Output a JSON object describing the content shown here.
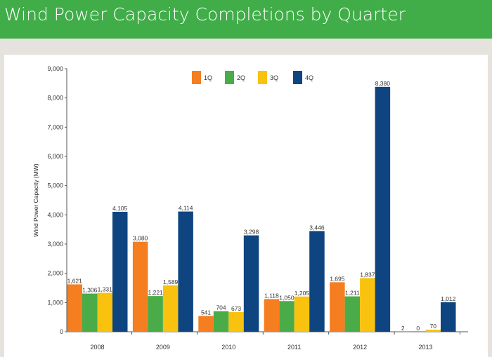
{
  "header": {
    "title": "Wind Power Capacity Completions by Quarter",
    "color": "#40ad49"
  },
  "chart_data": {
    "type": "bar",
    "title": "Wind Power Capacity Completions by Quarter",
    "xlabel": "",
    "ylabel": "Wind Power Capacity (MW)",
    "ylim": [
      0,
      9000
    ],
    "yticks": [
      0,
      1000,
      2000,
      3000,
      4000,
      5000,
      6000,
      7000,
      8000,
      9000
    ],
    "ytick_labels": [
      "0",
      "1,000",
      "2,000",
      "3,000",
      "4,000",
      "5,000",
      "6,000",
      "7,000",
      "8,000",
      "9,000"
    ],
    "grid": false,
    "legend_position": "top-center",
    "categories": [
      "2008",
      "2009",
      "2010",
      "2011",
      "2012",
      "2013"
    ],
    "series": [
      {
        "name": "1Q",
        "color": "#f57e20",
        "values": [
          1621,
          3080,
          541,
          1118,
          1695,
          2
        ],
        "labels": [
          "1,621",
          "3,080",
          "541",
          "1,118",
          "1,695",
          "2"
        ]
      },
      {
        "name": "2Q",
        "color": "#4aac48",
        "values": [
          1306,
          1221,
          704,
          1050,
          1211,
          0
        ],
        "labels": [
          "1,306",
          "1,221",
          "704",
          "1,050",
          "1,211",
          "0"
        ]
      },
      {
        "name": "3Q",
        "color": "#f8c20f",
        "values": [
          1331,
          1589,
          673,
          1205,
          1837,
          70
        ],
        "labels": [
          "1,331",
          "1,589",
          "673",
          "1,205",
          "1,837",
          "70"
        ]
      },
      {
        "name": "4Q",
        "color": "#0e4580",
        "values": [
          4105,
          4114,
          3298,
          3446,
          8380,
          1012
        ],
        "labels": [
          "4,105",
          "4,114",
          "3,298",
          "3,446",
          "8,380",
          "1,012"
        ]
      }
    ]
  }
}
